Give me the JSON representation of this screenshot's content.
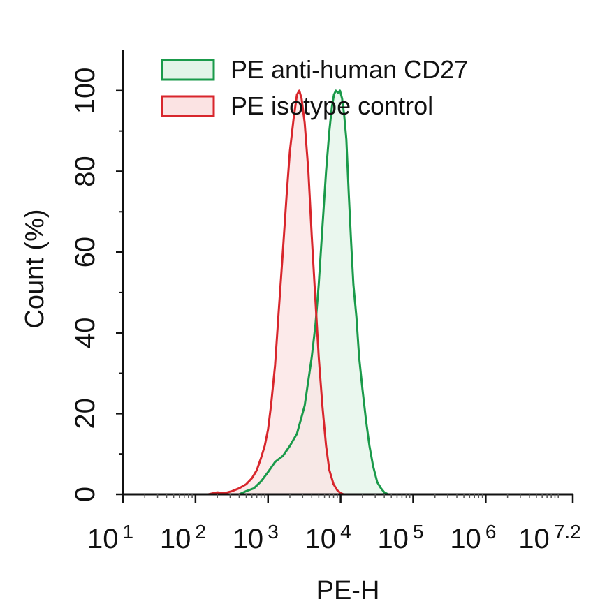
{
  "chart_data": {
    "type": "area",
    "title": "",
    "xlabel": "PE-H",
    "ylabel": "Count  (%)",
    "x_scale": "log10",
    "xlim": [
      10,
      15848931.9
    ],
    "ylim": [
      0,
      110
    ],
    "grid": false,
    "legend_position": "top-left",
    "x_ticks": [
      {
        "base": "10",
        "exp": "1"
      },
      {
        "base": "10",
        "exp": "2"
      },
      {
        "base": "10",
        "exp": "3"
      },
      {
        "base": "10",
        "exp": "4"
      },
      {
        "base": "10",
        "exp": "5"
      },
      {
        "base": "10",
        "exp": "6"
      },
      {
        "base": "10",
        "exp": "7.2"
      }
    ],
    "y_ticks": [
      "0",
      "20",
      "40",
      "60",
      "80",
      "100"
    ],
    "series": [
      {
        "name": "PE anti-human CD27",
        "color": "#1a9a4a",
        "fill": "#e3f4e8",
        "points": [
          [
            10,
            0
          ],
          [
            200,
            0
          ],
          [
            400,
            0
          ],
          [
            500,
            0.8
          ],
          [
            640,
            1.5
          ],
          [
            800,
            3.2
          ],
          [
            1000,
            5.5
          ],
          [
            1250,
            8
          ],
          [
            1600,
            9.5
          ],
          [
            2000,
            12
          ],
          [
            2500,
            15
          ],
          [
            3200,
            22
          ],
          [
            4000,
            34
          ],
          [
            4500,
            42
          ],
          [
            5000,
            52
          ],
          [
            5600,
            66
          ],
          [
            6300,
            80
          ],
          [
            7000,
            90
          ],
          [
            7600,
            96
          ],
          [
            8100,
            99
          ],
          [
            8600,
            100
          ],
          [
            9200,
            99.5
          ],
          [
            9800,
            100
          ],
          [
            10500,
            98
          ],
          [
            11200,
            94
          ],
          [
            12000,
            88
          ],
          [
            13000,
            74
          ],
          [
            14000,
            62
          ],
          [
            15000,
            52
          ],
          [
            16500,
            44
          ],
          [
            18000,
            34
          ],
          [
            20000,
            26
          ],
          [
            22500,
            18
          ],
          [
            25000,
            12
          ],
          [
            28000,
            7
          ],
          [
            32000,
            3
          ],
          [
            36000,
            1.5
          ],
          [
            40000,
            0.5
          ],
          [
            45000,
            0
          ],
          [
            15848931.9,
            0
          ]
        ]
      },
      {
        "name": "PE isotype control",
        "color": "#d8262c",
        "fill": "#fbe3e3",
        "points": [
          [
            10,
            0
          ],
          [
            150,
            0
          ],
          [
            200,
            0.5
          ],
          [
            250,
            0.3
          ],
          [
            320,
            0.8
          ],
          [
            400,
            1.5
          ],
          [
            500,
            2.5
          ],
          [
            600,
            4
          ],
          [
            700,
            6
          ],
          [
            800,
            9
          ],
          [
            900,
            12
          ],
          [
            1000,
            16
          ],
          [
            1100,
            22
          ],
          [
            1250,
            32
          ],
          [
            1400,
            45
          ],
          [
            1600,
            60
          ],
          [
            1800,
            74
          ],
          [
            2000,
            85
          ],
          [
            2250,
            93
          ],
          [
            2500,
            99
          ],
          [
            2700,
            100
          ],
          [
            2900,
            98
          ],
          [
            3200,
            92
          ],
          [
            3600,
            80
          ],
          [
            4000,
            64
          ],
          [
            4500,
            48
          ],
          [
            5000,
            34
          ],
          [
            5600,
            22
          ],
          [
            6300,
            12
          ],
          [
            7000,
            6
          ],
          [
            8000,
            2.5
          ],
          [
            9000,
            1
          ],
          [
            10000,
            0.3
          ],
          [
            11000,
            0
          ],
          [
            15848931.9,
            0
          ]
        ]
      }
    ]
  }
}
